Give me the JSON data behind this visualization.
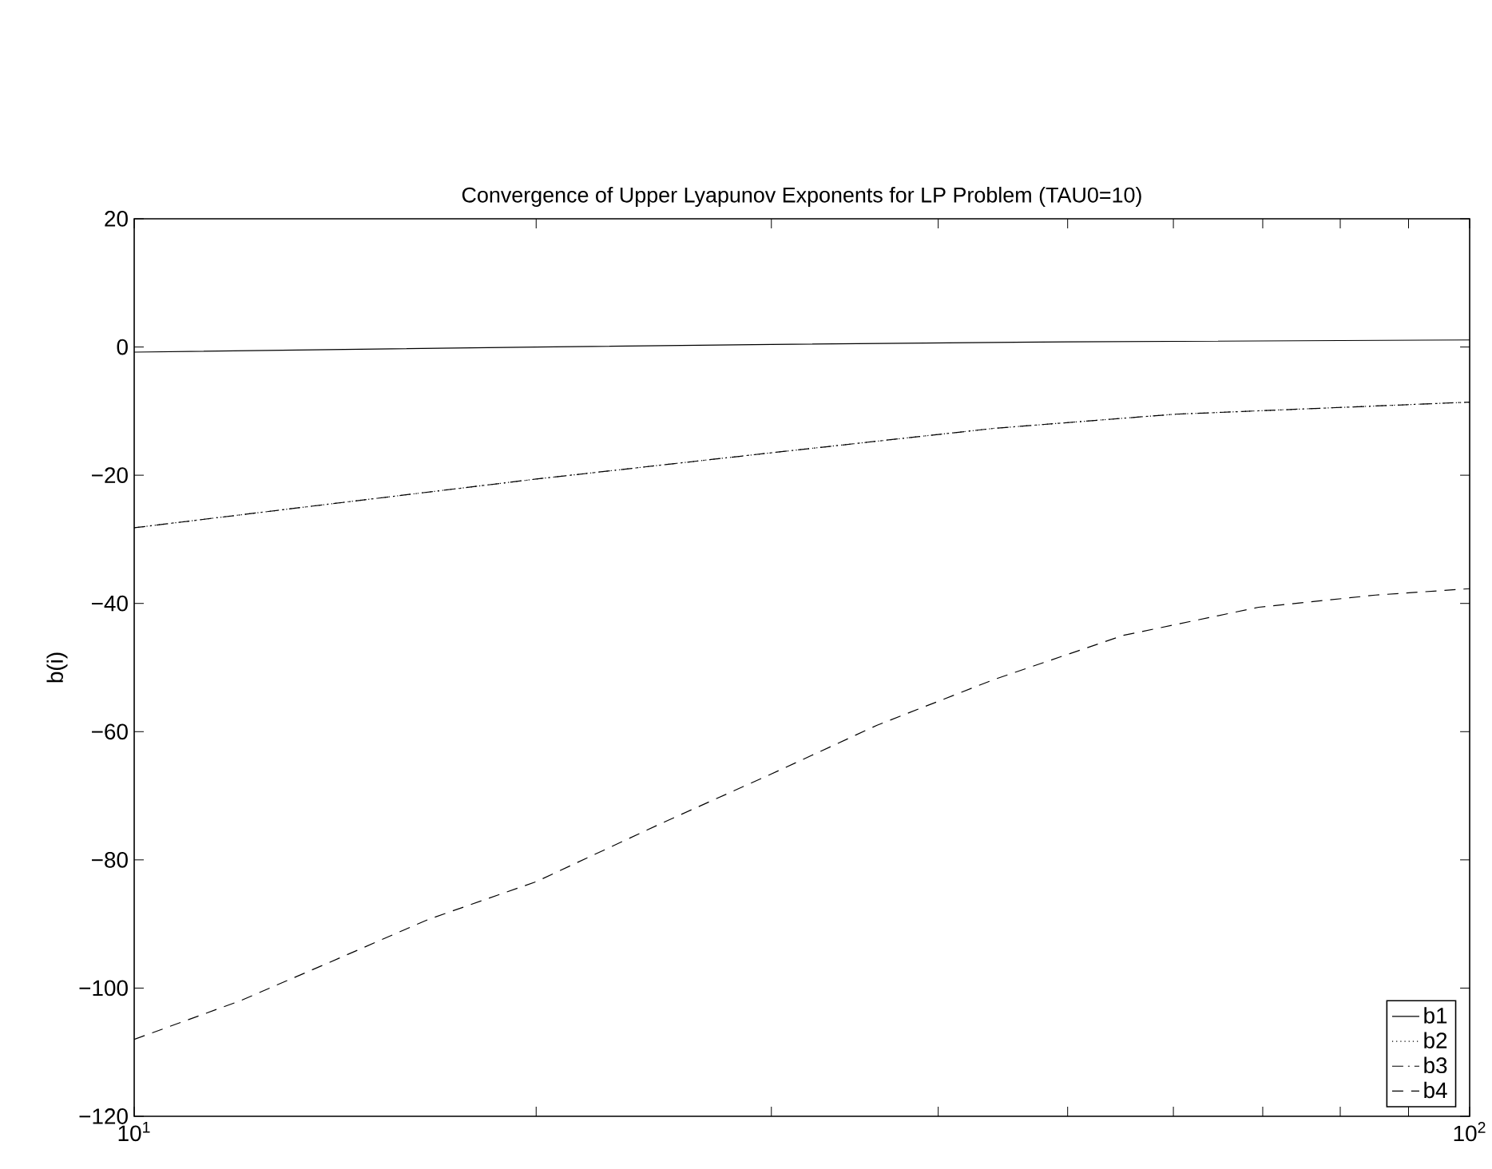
{
  "chart_data": {
    "type": "line",
    "title": "Convergence of Upper Lyapunov Exponents for LP Problem (TAU0=10)",
    "ylabel": "b(i)",
    "log": "x",
    "xlim": [
      10,
      100
    ],
    "ylim": [
      -120,
      20
    ],
    "xticks": [
      {
        "value": 10,
        "label": "10$^{1}$"
      },
      {
        "value": 20,
        "label": null
      },
      {
        "value": 30,
        "label": null
      },
      {
        "value": 40,
        "label": null
      },
      {
        "value": 50,
        "label": null
      },
      {
        "value": 60,
        "label": null
      },
      {
        "value": 70,
        "label": null
      },
      {
        "value": 80,
        "label": null
      },
      {
        "value": 90,
        "label": null
      },
      {
        "value": 100,
        "label": "10$^{2}$"
      }
    ],
    "yticks": [
      {
        "value": -120,
        "label": "−120"
      },
      {
        "value": -100,
        "label": "−100"
      },
      {
        "value": -80,
        "label": "−80"
      },
      {
        "value": -60,
        "label": "−60"
      },
      {
        "value": -40,
        "label": "−40"
      },
      {
        "value": -20,
        "label": "−20"
      },
      0,
      20
    ],
    "grid": false,
    "legend": "bottom right",
    "series": [
      {
        "name": "b1",
        "color": "#000000",
        "line_style": "solid",
        "x": [
          10,
          20,
          30,
          50,
          100
        ],
        "values": [
          -0.8,
          0,
          0.4,
          0.8,
          1.1
        ]
      },
      {
        "name": "b2",
        "color": "#000000",
        "line_style": "dotted",
        "x": [
          10,
          14,
          20,
          30,
          44,
          60,
          100
        ],
        "values": [
          -28.2,
          -24.5,
          -20.6,
          -16.5,
          -12.7,
          -10.5,
          -8.6
        ]
      },
      {
        "name": "b3",
        "color": "#000000",
        "line_style": "dashdot",
        "x": [
          10,
          14,
          20,
          30,
          44,
          60,
          100
        ],
        "values": [
          -28.2,
          -24.5,
          -20.6,
          -16.5,
          -12.7,
          -10.5,
          -8.6
        ]
      },
      {
        "name": "b4",
        "color": "#000000",
        "line_style": "dashed",
        "x": [
          10,
          12,
          14,
          16.6,
          20,
          25,
          30,
          36,
          44,
          55,
          69.5,
          85,
          100
        ],
        "values": [
          -108,
          -102,
          -96,
          -89.3,
          -83.4,
          -74,
          -66.6,
          -59,
          -51.9,
          -45,
          -40.6,
          -38.7,
          -37.7
        ]
      }
    ]
  }
}
